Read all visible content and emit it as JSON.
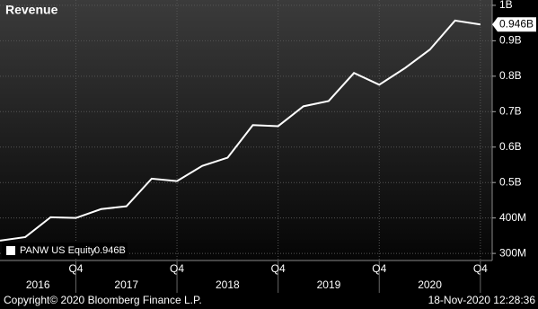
{
  "chart_data": {
    "type": "line",
    "title": "Revenue",
    "categories": [
      null,
      null,
      null,
      "Q4",
      null,
      null,
      null,
      "Q4",
      null,
      null,
      null,
      "Q4",
      null,
      null,
      null,
      "Q4",
      null,
      null,
      null,
      "Q4"
    ],
    "year_labels": [
      "2016",
      "2017",
      "2018",
      "2019",
      "2020"
    ],
    "series": [
      {
        "name": "PANW US Equity",
        "color": "#ffffff",
        "values": [
          0.336,
          0.346,
          0.402,
          0.4,
          0.425,
          0.433,
          0.511,
          0.504,
          0.547,
          0.57,
          0.662,
          0.659,
          0.715,
          0.73,
          0.809,
          0.776,
          0.822,
          0.875,
          0.957,
          0.946
        ],
        "value_labels": [
          null,
          null,
          null,
          null,
          null,
          null,
          null,
          null,
          null,
          null,
          null,
          null,
          null,
          null,
          null,
          null,
          null,
          null,
          null,
          "0.946B"
        ]
      }
    ],
    "ylim": [
      0.28,
      1.015
    ],
    "yticks": [
      {
        "value": 1,
        "label": "1B"
      },
      {
        "value": 0.9,
        "label": "0.9B"
      },
      {
        "value": 0.8,
        "label": "0.8B"
      },
      {
        "value": 0.7,
        "label": "0.7B"
      },
      {
        "value": 0.6,
        "label": "0.6B"
      },
      {
        "value": 0.5,
        "label": "0.5B"
      },
      {
        "value": 0.4,
        "label": "400M"
      },
      {
        "value": 0.3,
        "label": "300M"
      }
    ],
    "grid": true,
    "copyright": "Copyright© 2020 Bloomberg Finance L.P.",
    "timestamp": "18-Nov-2020 12:28:36"
  }
}
